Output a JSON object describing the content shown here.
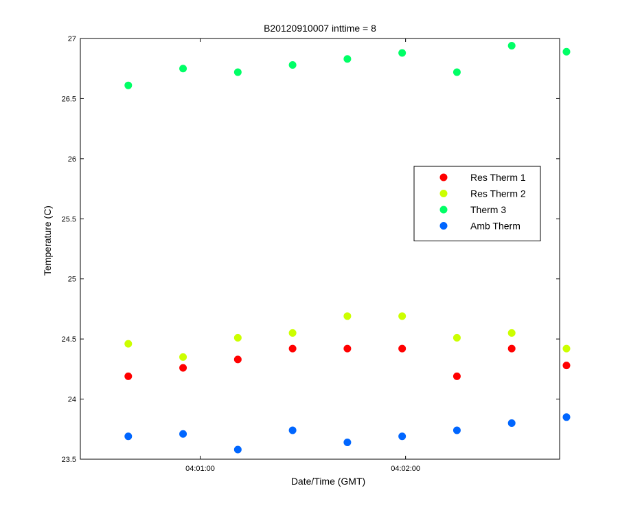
{
  "chart_data": {
    "type": "scatter",
    "title": "B20120910007 inttime = 8",
    "xlabel": "Date/Time (GMT)",
    "ylabel": "Temperature (C)",
    "ylim": [
      23.5,
      27
    ],
    "xlim": [
      "04:00:25",
      "04:02:45"
    ],
    "y_ticks": [
      23.5,
      24,
      24.5,
      25,
      25.5,
      26,
      26.5,
      27
    ],
    "x_ticks": [
      "04:01:00",
      "04:02:00"
    ],
    "grid": false,
    "legend_position": "center-right",
    "x": [
      "04:00:39",
      "04:00:55",
      "04:01:11",
      "04:01:27",
      "04:01:43",
      "04:01:59",
      "04:02:15",
      "04:02:31",
      "04:02:47"
    ],
    "series": [
      {
        "name": "Res Therm 1",
        "color": "#ff0000",
        "values": [
          24.19,
          24.26,
          24.33,
          24.42,
          24.42,
          24.42,
          24.19,
          24.42,
          24.28
        ]
      },
      {
        "name": "Res Therm 2",
        "color": "#ccff00",
        "values": [
          24.46,
          24.35,
          24.51,
          24.55,
          24.69,
          24.69,
          24.51,
          24.55,
          24.42
        ]
      },
      {
        "name": "Therm 3",
        "color": "#00ff66",
        "values": [
          26.61,
          26.75,
          26.72,
          26.78,
          26.83,
          26.88,
          26.72,
          26.94,
          26.89
        ]
      },
      {
        "name": "Amb Therm",
        "color": "#0066ff",
        "values": [
          23.69,
          23.71,
          23.58,
          23.74,
          23.64,
          23.69,
          23.74,
          23.8,
          23.85
        ]
      }
    ]
  }
}
